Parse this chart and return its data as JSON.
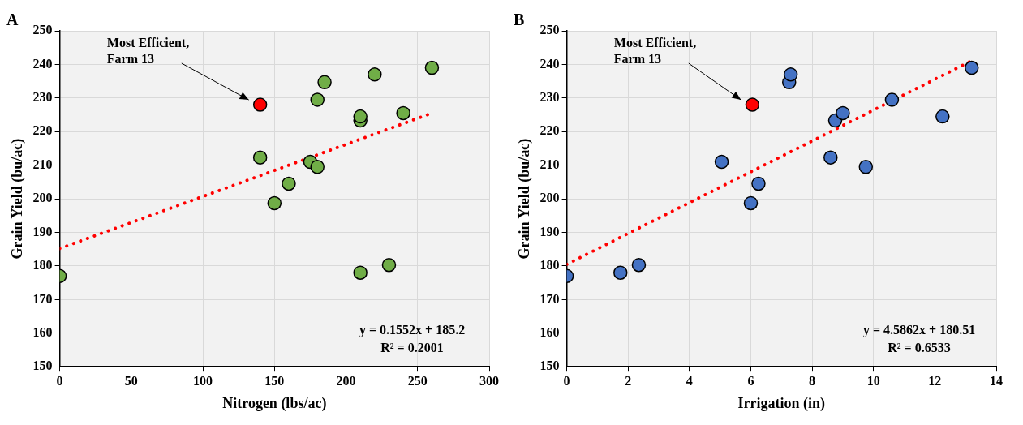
{
  "chart_data": [
    {
      "type": "scatter",
      "title": "A",
      "xlabel": "Nitrogen (lbs/ac)",
      "ylabel": "Grain Yield (bu/ac)",
      "xlim": [
        0,
        300
      ],
      "xticks": [
        0,
        50,
        100,
        150,
        200,
        250,
        300
      ],
      "ylim": [
        150,
        250
      ],
      "yticks": [
        150,
        160,
        170,
        180,
        190,
        200,
        210,
        220,
        230,
        240,
        250
      ],
      "grid": true,
      "series": [
        {
          "marker": "circle",
          "color": "#70ad47",
          "x": [
            0,
            140,
            150,
            160,
            175,
            180,
            180,
            185,
            210,
            210,
            210,
            220,
            230,
            240,
            260
          ],
          "values": [
            177,
            212.3,
            198.7,
            204.5,
            211,
            209.5,
            229.5,
            234.7,
            223.3,
            224.5,
            178,
            237,
            180.3,
            225.5,
            239
          ]
        },
        {
          "marker": "circle",
          "color": "#ff0000",
          "x": [
            140
          ],
          "values": [
            228
          ]
        },
        {
          "type": "line",
          "marker": "none",
          "line_style": "dotted",
          "color": "#ff0000",
          "x": [
            0,
            260
          ],
          "values": [
            185.2,
            225.5
          ]
        }
      ],
      "annotations": [
        "Most Efficient, Farm 13",
        "y = 0.1552x + 185.2",
        "R² = 0.2001"
      ]
    },
    {
      "type": "scatter",
      "title": "B",
      "xlabel": "Irrigation (in)",
      "ylabel": "Grain Yield (bu/ac)",
      "xlim": [
        0,
        14
      ],
      "xticks": [
        0,
        2,
        4,
        6,
        8,
        10,
        12,
        14
      ],
      "ylim": [
        150,
        250
      ],
      "yticks": [
        150,
        160,
        170,
        180,
        190,
        200,
        210,
        220,
        230,
        240,
        250
      ],
      "grid": true,
      "series": [
        {
          "marker": "circle",
          "color": "#4472c4",
          "x": [
            0,
            1.75,
            2.35,
            5.05,
            6.0,
            6.25,
            7.25,
            7.3,
            8.6,
            8.75,
            9.0,
            9.75,
            10.6,
            12.25,
            13.2
          ],
          "values": [
            177,
            178,
            180.3,
            211,
            198.7,
            204.5,
            234.7,
            237,
            212.3,
            223.3,
            225.5,
            209.5,
            229.5,
            224.5,
            239
          ]
        },
        {
          "marker": "circle",
          "color": "#ff0000",
          "x": [
            6.05
          ],
          "values": [
            228
          ]
        },
        {
          "type": "line",
          "marker": "none",
          "line_style": "dotted",
          "color": "#ff0000",
          "x": [
            0,
            13.2
          ],
          "values": [
            180.5,
            241.1
          ]
        }
      ],
      "annotations": [
        "Most Efficient, Farm 13",
        "y = 4.5862x + 180.51",
        "R² = 0.6533"
      ]
    }
  ]
}
